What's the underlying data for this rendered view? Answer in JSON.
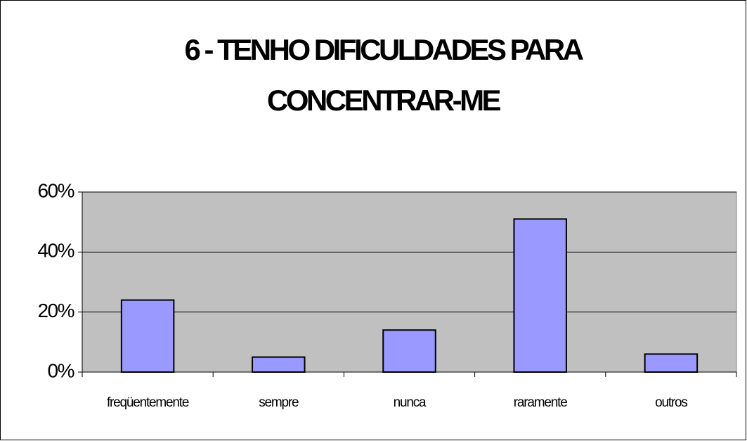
{
  "chart_data": {
    "type": "bar",
    "title": [
      "6 - TENHO DIFICULDADES PARA",
      "CONCENTRAR-ME"
    ],
    "categories": [
      "freqüentemente",
      "sempre",
      "nunca",
      "raramente",
      "outros"
    ],
    "values": [
      24,
      5,
      14,
      51,
      6
    ],
    "color": "#9999ff",
    "ylim": [
      0,
      60
    ],
    "yticks": [
      {
        "value": 0,
        "label": "0%"
      },
      {
        "value": 20,
        "label": "20%"
      },
      {
        "value": 40,
        "label": "40%"
      },
      {
        "value": 60,
        "label": "60%"
      }
    ],
    "grid": true
  }
}
